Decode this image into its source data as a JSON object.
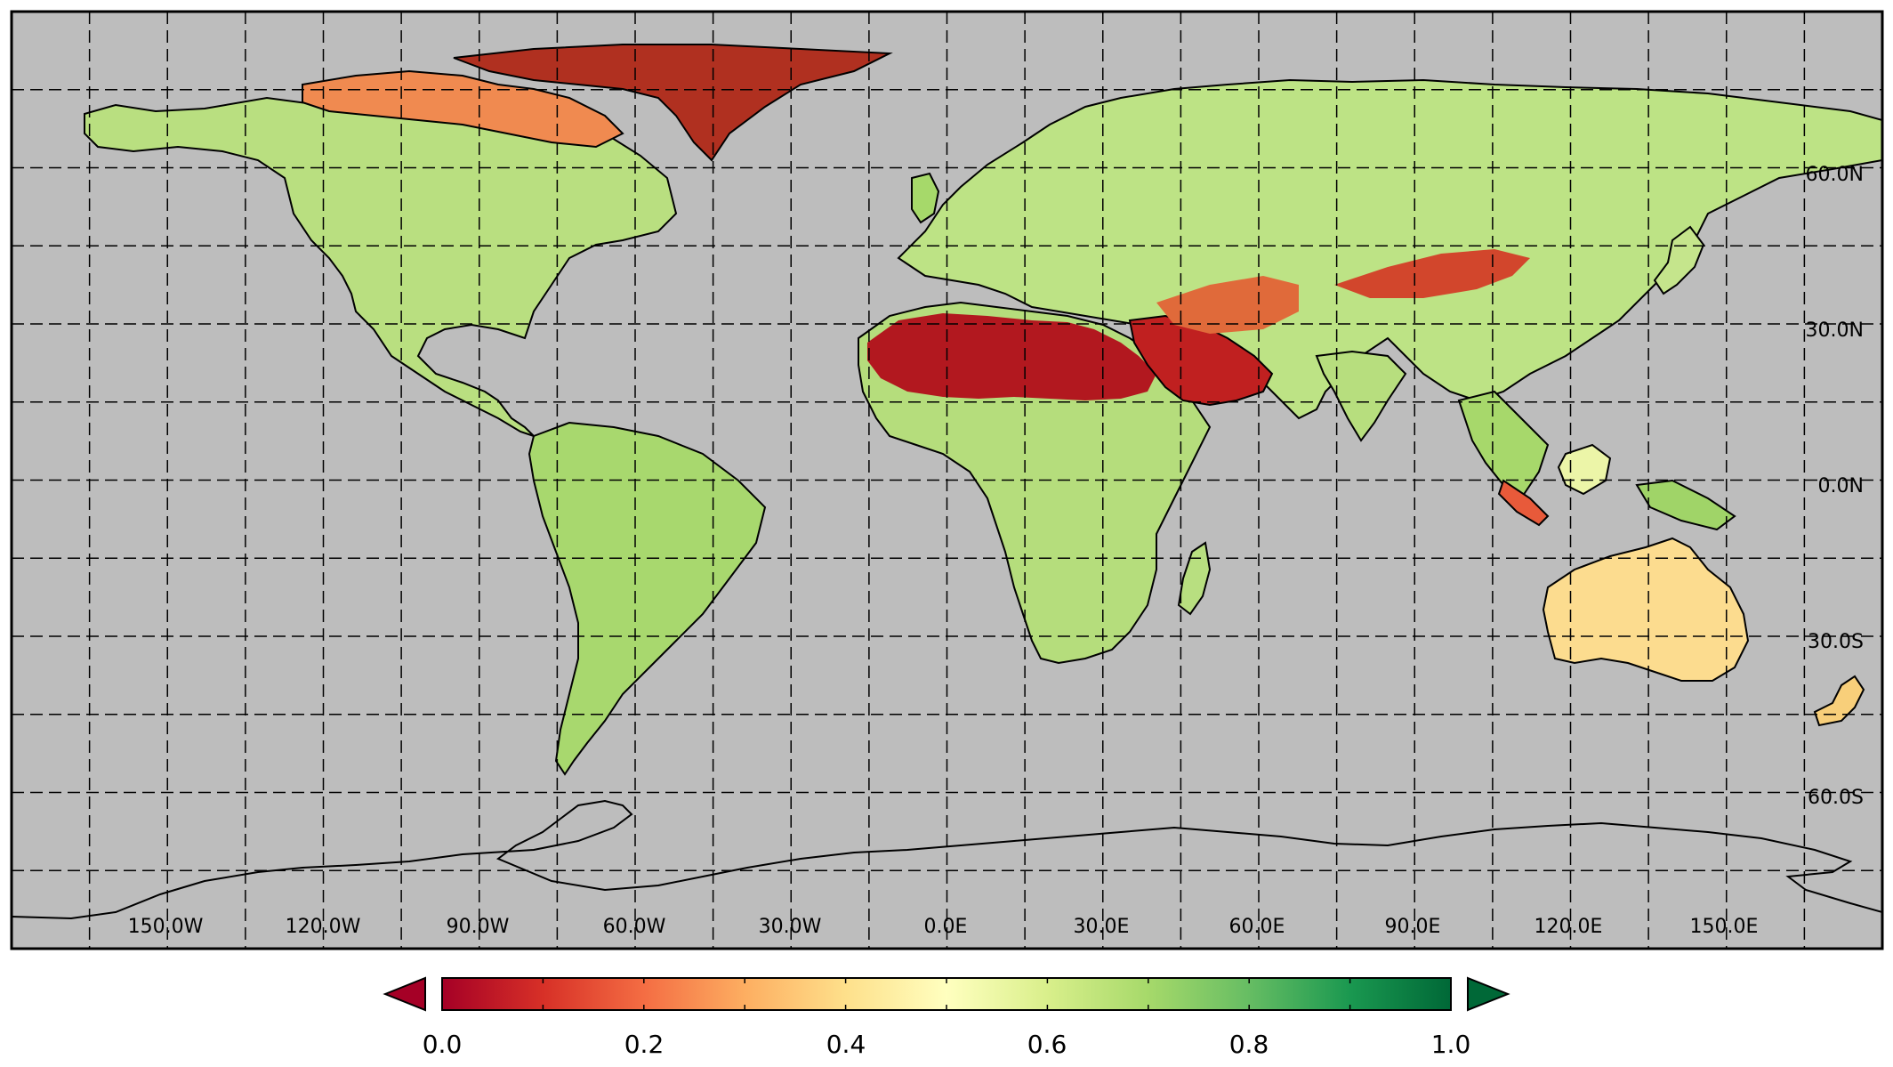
{
  "map": {
    "lat_labels": [
      "60.0N",
      "30.0N",
      "0.0N",
      "30.0S",
      "60.0S"
    ],
    "lon_labels": [
      "150.0W",
      "120.0W",
      "90.0W",
      "60.0W",
      "30.0W",
      "0.0E",
      "30.0E",
      "60.0E",
      "90.0E",
      "120.0E",
      "150.0E"
    ],
    "colors": {
      "ocean": "#bdbdbd",
      "grid": "#000000",
      "coast": "#000000"
    }
  },
  "colorbar": {
    "min": 0.0,
    "max": 1.0,
    "tick_labels": [
      "0.0",
      "0.2",
      "0.4",
      "0.6",
      "0.8",
      "1.0"
    ],
    "colormap": "RdYlGn",
    "stops": [
      "#a50026",
      "#d73027",
      "#f46d43",
      "#fdae61",
      "#fee08b",
      "#ffffbf",
      "#d9ef8b",
      "#a6d96a",
      "#66bd63",
      "#1a9850",
      "#006837"
    ],
    "extend_low_color": "#a50026",
    "extend_high_color": "#006837"
  }
}
